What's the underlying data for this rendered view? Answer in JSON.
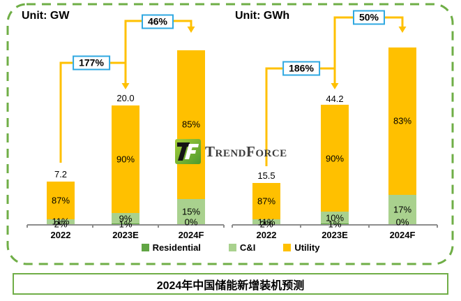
{
  "chart_data": [
    {
      "type": "bar",
      "stacked": true,
      "unit_label": "Unit: GW",
      "categories": [
        "2022",
        "2023E",
        "2024F"
      ],
      "total_labels": [
        "7.2",
        "20.0",
        ""
      ],
      "series": [
        {
          "name": "Residential",
          "color": "#61a544",
          "values_pct": [
            2,
            1,
            0
          ]
        },
        {
          "name": "C&I",
          "color": "#a9d18e",
          "values_pct": [
            11,
            9,
            15
          ]
        },
        {
          "name": "Utility",
          "color": "#ffc000",
          "values_pct": [
            87,
            90,
            85
          ]
        }
      ],
      "growth_labels": [
        "177%",
        "46%"
      ],
      "legend_position": "bottom",
      "grid": false
    },
    {
      "type": "bar",
      "stacked": true,
      "unit_label": "Unit: GWh",
      "categories": [
        "2022",
        "2023E",
        "2024F"
      ],
      "total_labels": [
        "15.5",
        "44.2",
        ""
      ],
      "series": [
        {
          "name": "Residential",
          "color": "#61a544",
          "values_pct": [
            2,
            1,
            0
          ]
        },
        {
          "name": "C&I",
          "color": "#a9d18e",
          "values_pct": [
            11,
            10,
            17
          ]
        },
        {
          "name": "Utility",
          "color": "#ffc000",
          "values_pct": [
            87,
            90,
            83
          ]
        }
      ],
      "growth_labels": [
        "186%",
        "50%"
      ],
      "legend_position": "bottom",
      "grid": false
    }
  ],
  "legend": {
    "items": [
      {
        "label": "Residential",
        "color": "#61a544"
      },
      {
        "label": "C&I",
        "color": "#a9d18e"
      },
      {
        "label": "Utility",
        "color": "#ffc000"
      }
    ]
  },
  "logo": {
    "brand": "TrendForce"
  },
  "footer": {
    "title": "2024年中国储能新增装机预测"
  },
  "colors": {
    "accent_orange": "#ffc000",
    "badge_border": "#2fa8e1",
    "frame_green": "#6fae46",
    "axis_gray": "#8c8c8c"
  }
}
